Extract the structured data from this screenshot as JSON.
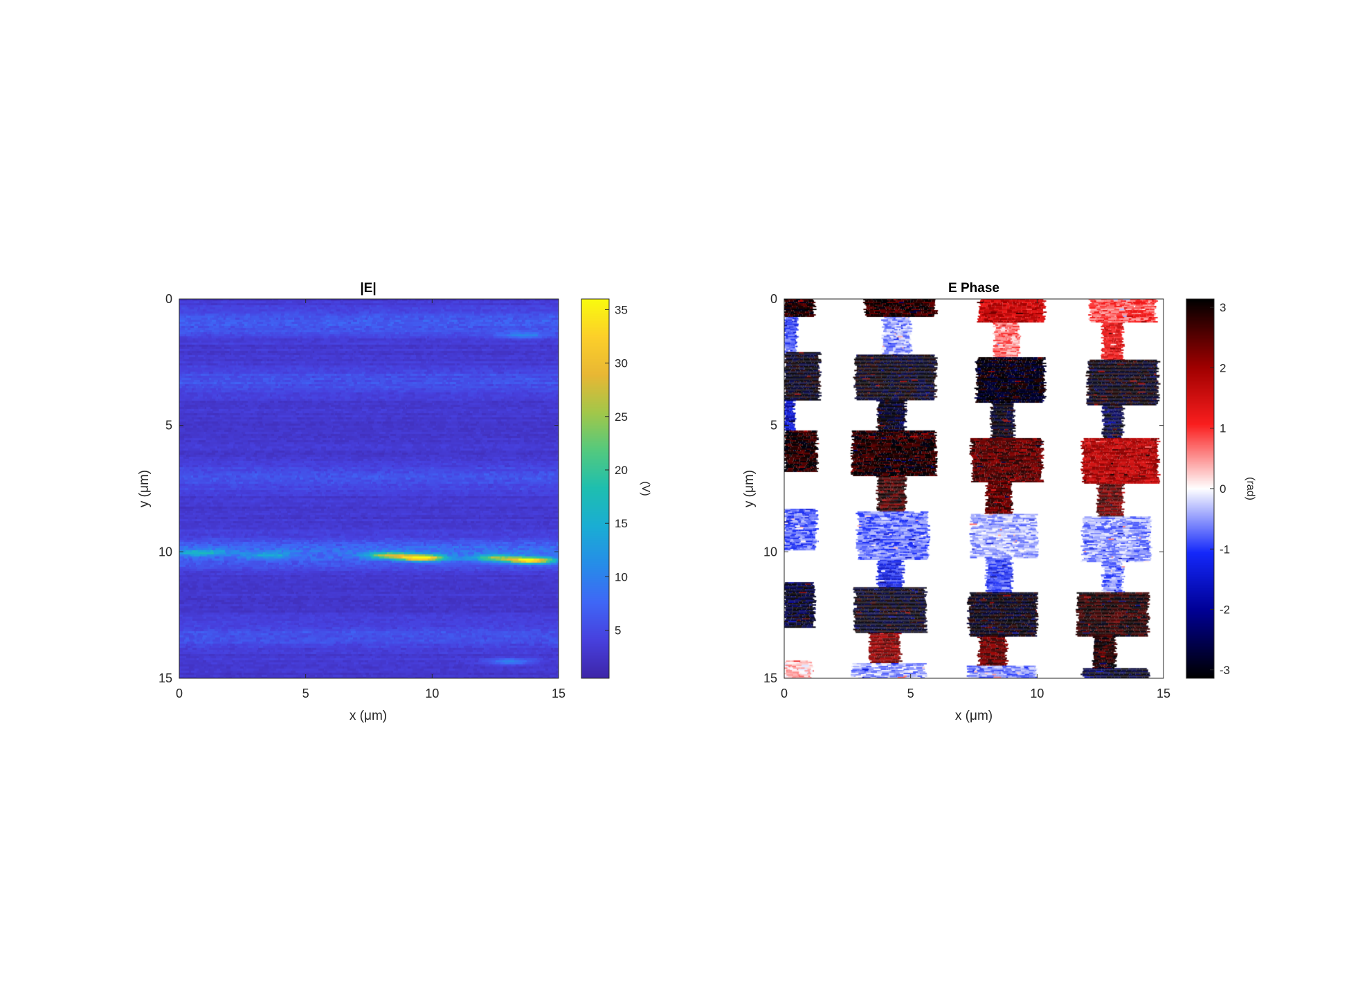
{
  "chart_data": [
    {
      "type": "heatmap",
      "title": "|E|",
      "xlabel": "x (μm)",
      "ylabel": "y (μm)",
      "xlim": [
        0,
        15
      ],
      "ylim": [
        0,
        15
      ],
      "y_axis_reversed": true,
      "xticks": [
        "0",
        "5",
        "10",
        "15"
      ],
      "yticks": [
        "0",
        "5",
        "10",
        "15"
      ],
      "colormap": "parula",
      "colorbar": {
        "label": "(V)",
        "range": [
          0.5,
          36
        ],
        "ticks": [
          "5",
          "10",
          "15",
          "20",
          "25",
          "30",
          "35"
        ]
      },
      "background_level": 3,
      "bright_bands": [
        {
          "y": 0.9,
          "x_range": [
            0,
            15
          ],
          "value": 7
        },
        {
          "y": 3.2,
          "x_range": [
            0,
            15
          ],
          "value": 6
        },
        {
          "y": 7.0,
          "x_range": [
            0,
            15
          ],
          "value": 6
        },
        {
          "y": 10.0,
          "x_range": [
            0,
            15
          ],
          "value": 9
        },
        {
          "y": 13.3,
          "x_range": [
            0,
            15
          ],
          "value": 6
        }
      ],
      "hotspots": [
        {
          "x": 9.5,
          "y": 10.2,
          "value": 35
        },
        {
          "x": 13.8,
          "y": 10.3,
          "value": 34
        },
        {
          "x": 8.2,
          "y": 10.1,
          "value": 22
        },
        {
          "x": 12.4,
          "y": 10.2,
          "value": 20
        },
        {
          "x": 0.8,
          "y": 10.0,
          "value": 12
        },
        {
          "x": 3.4,
          "y": 10.1,
          "value": 11
        },
        {
          "x": 13.0,
          "y": 14.3,
          "value": 10
        },
        {
          "x": 13.5,
          "y": 1.4,
          "value": 9
        }
      ]
    },
    {
      "type": "heatmap",
      "title": "E Phase",
      "xlabel": "x (μm)",
      "ylabel": "y (μm)",
      "xlim": [
        0,
        15
      ],
      "ylim": [
        0,
        15
      ],
      "y_axis_reversed": true,
      "xticks": [
        "0",
        "5",
        "10",
        "15"
      ],
      "yticks": [
        "0",
        "5",
        "10",
        "15"
      ],
      "colormap": "diverging black-blue-white-red-black",
      "colorbar": {
        "label": "(rad)",
        "range": [
          -3.14,
          3.14
        ],
        "ticks": [
          "-3",
          "-2",
          "-1",
          "0",
          "1",
          "2",
          "3"
        ]
      },
      "masked_value_color": "#ffffff",
      "pads": [
        {
          "x": [
            0.0,
            1.2
          ],
          "y": [
            0.0,
            0.7
          ],
          "phase": 2.9
        },
        {
          "x": [
            3.2,
            6.0
          ],
          "y": [
            0.0,
            0.7
          ],
          "phase": 2.8
        },
        {
          "x": [
            7.7,
            10.3
          ],
          "y": [
            0.0,
            0.9
          ],
          "phase": 1.6
        },
        {
          "x": [
            12.1,
            14.7
          ],
          "y": [
            0.0,
            0.9
          ],
          "phase": 0.8
        },
        {
          "x": [
            0.0,
            1.4
          ],
          "y": [
            2.1,
            4.0
          ],
          "phase": -3.0
        },
        {
          "x": [
            2.8,
            6.0
          ],
          "y": [
            2.2,
            4.0
          ],
          "phase": -3.0
        },
        {
          "x": [
            7.6,
            10.3
          ],
          "y": [
            2.3,
            4.1
          ],
          "phase": -3.05
        },
        {
          "x": [
            12.0,
            14.8
          ],
          "y": [
            2.4,
            4.2
          ],
          "phase": -3.05
        },
        {
          "x": [
            0.0,
            1.3
          ],
          "y": [
            5.2,
            6.8
          ],
          "phase": 2.9
        },
        {
          "x": [
            2.7,
            6.0
          ],
          "y": [
            5.2,
            7.0
          ],
          "phase": 2.9
        },
        {
          "x": [
            7.4,
            10.2
          ],
          "y": [
            5.5,
            7.2
          ],
          "phase": 2.5
        },
        {
          "x": [
            11.8,
            14.8
          ],
          "y": [
            5.5,
            7.3
          ],
          "phase": 1.8
        },
        {
          "x": [
            0.0,
            1.3
          ],
          "y": [
            8.3,
            9.9
          ],
          "phase": -0.8
        },
        {
          "x": [
            2.9,
            5.7
          ],
          "y": [
            8.4,
            10.3
          ],
          "phase": -0.7
        },
        {
          "x": [
            7.4,
            10.0
          ],
          "y": [
            8.5,
            10.2
          ],
          "phase": -0.4
        },
        {
          "x": [
            11.8,
            14.5
          ],
          "y": [
            8.6,
            10.4
          ],
          "phase": -0.5
        },
        {
          "x": [
            0.0,
            1.2
          ],
          "y": [
            11.2,
            13.0
          ],
          "phase": -2.8
        },
        {
          "x": [
            2.8,
            5.6
          ],
          "y": [
            11.4,
            13.2
          ],
          "phase": -3.0
        },
        {
          "x": [
            7.3,
            10.0
          ],
          "y": [
            11.6,
            13.3
          ],
          "phase": -3.05
        },
        {
          "x": [
            11.6,
            14.4
          ],
          "y": [
            11.6,
            13.3
          ],
          "phase": 2.9
        },
        {
          "x": [
            0.0,
            1.1
          ],
          "y": [
            14.3,
            15.0
          ],
          "phase": 0.3
        },
        {
          "x": [
            2.7,
            5.6
          ],
          "y": [
            14.4,
            15.0
          ],
          "phase": -0.4
        },
        {
          "x": [
            7.3,
            10.0
          ],
          "y": [
            14.5,
            15.0
          ],
          "phase": -0.6
        },
        {
          "x": [
            11.8,
            14.4
          ],
          "y": [
            14.6,
            15.0
          ],
          "phase": -2.8
        }
      ],
      "bridges": [
        {
          "x": [
            0.0,
            0.5
          ],
          "y": [
            0.7,
            2.1
          ],
          "phase": -1.0
        },
        {
          "x": [
            3.9,
            5.0
          ],
          "y": [
            0.7,
            2.2
          ],
          "phase": -0.5
        },
        {
          "x": [
            8.3,
            9.3
          ],
          "y": [
            0.9,
            2.3
          ],
          "phase": 0.6
        },
        {
          "x": [
            12.6,
            13.4
          ],
          "y": [
            0.9,
            2.4
          ],
          "phase": 1.3
        },
        {
          "x": [
            0.0,
            0.4
          ],
          "y": [
            4.0,
            5.2
          ],
          "phase": -1.5
        },
        {
          "x": [
            3.7,
            4.8
          ],
          "y": [
            4.0,
            5.2
          ],
          "phase": -3.0
        },
        {
          "x": [
            8.2,
            9.1
          ],
          "y": [
            4.1,
            5.5
          ],
          "phase": -3.0
        },
        {
          "x": [
            12.6,
            13.4
          ],
          "y": [
            4.2,
            5.5
          ],
          "phase": -2.7
        },
        {
          "x": [
            3.7,
            4.8
          ],
          "y": [
            7.0,
            8.4
          ],
          "phase": 2.7
        },
        {
          "x": [
            8.0,
            9.0
          ],
          "y": [
            7.2,
            8.5
          ],
          "phase": 2.5
        },
        {
          "x": [
            12.4,
            13.4
          ],
          "y": [
            7.3,
            8.6
          ],
          "phase": 2.4
        },
        {
          "x": [
            3.7,
            4.7
          ],
          "y": [
            10.3,
            11.4
          ],
          "phase": -1.2
        },
        {
          "x": [
            8.0,
            9.0
          ],
          "y": [
            10.2,
            11.6
          ],
          "phase": -1.0
        },
        {
          "x": [
            12.6,
            13.4
          ],
          "y": [
            10.4,
            11.6
          ],
          "phase": -0.6
        },
        {
          "x": [
            3.4,
            4.6
          ],
          "y": [
            13.2,
            14.4
          ],
          "phase": 2.2
        },
        {
          "x": [
            7.7,
            8.8
          ],
          "y": [
            13.3,
            14.5
          ],
          "phase": 2.4
        },
        {
          "x": [
            12.2,
            13.1
          ],
          "y": [
            13.3,
            14.6
          ],
          "phase": 2.9
        }
      ]
    }
  ]
}
